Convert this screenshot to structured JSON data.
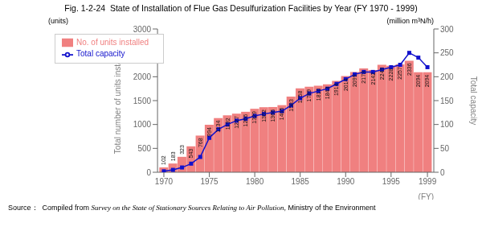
{
  "chart_data": {
    "type": "bar",
    "title": "Fig. 1-2-24  State of Installation of Flue Gas Desulfurization Facilities by Year (FY 1970 - 1999)",
    "x": [
      1970,
      1971,
      1972,
      1973,
      1974,
      1975,
      1976,
      1977,
      1978,
      1979,
      1980,
      1981,
      1982,
      1983,
      1984,
      1985,
      1986,
      1987,
      1988,
      1989,
      1990,
      1991,
      1992,
      1993,
      1994,
      1995,
      1996,
      1997,
      1998,
      1999
    ],
    "xlim": [
      1969.3,
      1999.7
    ],
    "xticks": [
      1970,
      1975,
      1980,
      1985,
      1990,
      1995,
      1999
    ],
    "xlabel": "(FY)",
    "ylabel": "Total number of units installed",
    "y2label": "Total capacity",
    "y_units": "(units)",
    "y2_units": "(million m³N/h)",
    "ylim": [
      0,
      3000
    ],
    "yticks": [
      0,
      500,
      1000,
      1500,
      2000,
      2500,
      3000
    ],
    "y2lim": [
      0,
      300
    ],
    "y2ticks": [
      0,
      50,
      100,
      150,
      200,
      250,
      300
    ],
    "series": [
      {
        "name": "No. of units installed",
        "type": "bar",
        "color": "#f08080",
        "data_labels": true,
        "values": [
          102,
          183,
          323,
          543,
          768,
          994,
          1134,
          1192,
          1227,
          1266,
          1329,
          1362,
          1366,
          1405,
          1583,
          1758,
          1789,
          1810,
          1843,
          1914,
          2014,
          2099,
          2173,
          2142,
          2249,
          2228,
          2257,
          2336,
          2094,
          2094
        ]
      },
      {
        "name": "Total capacity",
        "type": "line",
        "axis": "y2",
        "color": "#1111cc",
        "marker": "square",
        "values": [
          2,
          5,
          10,
          18,
          32,
          72,
          90,
          100,
          108,
          112,
          118,
          122,
          125,
          128,
          140,
          155,
          165,
          170,
          175,
          185,
          195,
          205,
          210,
          210,
          215,
          220,
          225,
          250,
          240,
          220
        ]
      }
    ],
    "legend": "upper left",
    "grid": false,
    "source": "Source：  Compiled from Survey on the State of Stationary Sources Relating to Air Pollution, Ministry of the Environment",
    "source_italic": "Survey on the State of Stationary Sources Relating to Air Pollution"
  }
}
